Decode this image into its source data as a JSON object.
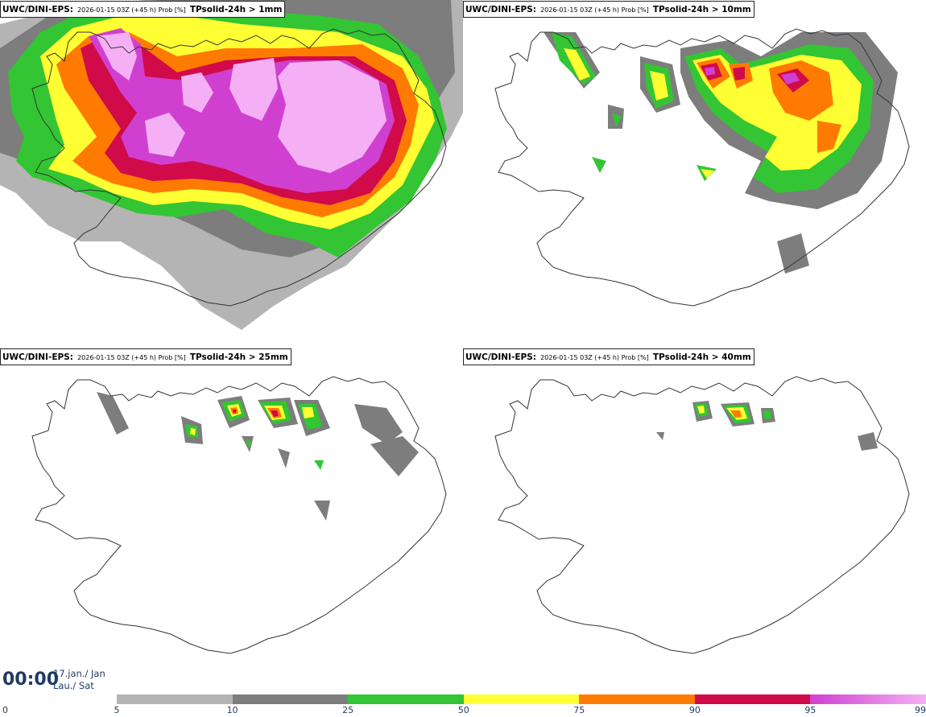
{
  "panels": [
    {
      "model": "UWC/DINI-EPS",
      "run": "2026-01-15 03Z (+45 h) Prob [%]",
      "param": "TPsolid-24h > 1mm"
    },
    {
      "model": "UWC/DINI-EPS",
      "run": "2026-01-15 03Z (+45 h) Prob [%]",
      "param": "TPsolid-24h > 10mm"
    },
    {
      "model": "UWC/DINI-EPS",
      "run": "2026-01-15 03Z (+45 h) Prob [%]",
      "param": "TPsolid-24h > 25mm"
    },
    {
      "model": "UWC/DINI-EPS",
      "run": "2026-01-15 03Z (+45 h) Prob [%]",
      "param": "TPsolid-24h > 40mm"
    }
  ],
  "valid_time": {
    "time": "00:00",
    "date": "17.jan./ Jan",
    "day": "Lau./ Sat"
  },
  "legend": {
    "ticks": [
      "0",
      "5",
      "10",
      "25",
      "50",
      "75",
      "90",
      "95",
      "99"
    ],
    "classes": [
      {
        "from": 5,
        "to": 10,
        "color": "#b4b4b4"
      },
      {
        "from": 10,
        "to": 25,
        "color": "#7d7d7d"
      },
      {
        "from": 25,
        "to": 50,
        "color": "#33c533"
      },
      {
        "from": 50,
        "to": 75,
        "color": "#ffff33"
      },
      {
        "from": 75,
        "to": 90,
        "color": "#ff7a00"
      },
      {
        "from": 90,
        "to": 95,
        "color": "#d10a4a"
      },
      {
        "from": 95,
        "to": 99,
        "color": "#d040d0",
        "to_color": "#f5b0f5"
      }
    ]
  },
  "colors": {
    "p5": "#b4b4b4",
    "p10": "#7d7d7d",
    "p25": "#33c533",
    "p50": "#ffff33",
    "p75": "#ff7a00",
    "p90": "#d10a4a",
    "p95": "#d040d0",
    "p99": "#f5b0f5",
    "outline": "#333333",
    "text_dark_blue": "#1f3a66"
  }
}
